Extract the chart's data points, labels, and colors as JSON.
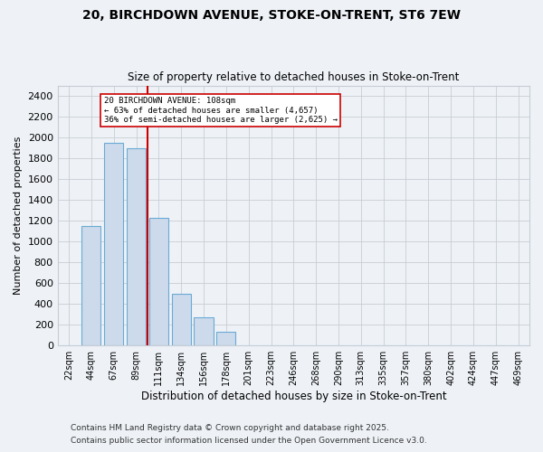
{
  "title1": "20, BIRCHDOWN AVENUE, STOKE-ON-TRENT, ST6 7EW",
  "title2": "Size of property relative to detached houses in Stoke-on-Trent",
  "xlabel": "Distribution of detached houses by size in Stoke-on-Trent",
  "ylabel": "Number of detached properties",
  "bin_labels": [
    "22sqm",
    "44sqm",
    "67sqm",
    "89sqm",
    "111sqm",
    "134sqm",
    "156sqm",
    "178sqm",
    "201sqm",
    "223sqm",
    "246sqm",
    "268sqm",
    "290sqm",
    "313sqm",
    "335sqm",
    "357sqm",
    "380sqm",
    "402sqm",
    "424sqm",
    "447sqm",
    "469sqm"
  ],
  "bin_values": [
    0,
    1150,
    1950,
    1900,
    1230,
    500,
    270,
    130,
    0,
    0,
    0,
    0,
    0,
    0,
    0,
    0,
    0,
    0,
    0,
    0,
    0
  ],
  "bar_color": "#ccdaeb",
  "bar_edge_color": "#6aaad4",
  "red_line_bin": 3.5,
  "annotation_line1": "20 BIRCHDOWN AVENUE: 108sqm",
  "annotation_line2": "← 63% of detached houses are smaller (4,657)",
  "annotation_line3": "36% of semi-detached houses are larger (2,625) →",
  "ylim": [
    0,
    2500
  ],
  "yticks": [
    0,
    200,
    400,
    600,
    800,
    1000,
    1200,
    1400,
    1600,
    1800,
    2000,
    2200,
    2400
  ],
  "bg_color": "#eef2f7",
  "grid_color": "#c8cdd4",
  "footer1": "Contains HM Land Registry data © Crown copyright and database right 2025.",
  "footer2": "Contains public sector information licensed under the Open Government Licence v3.0."
}
